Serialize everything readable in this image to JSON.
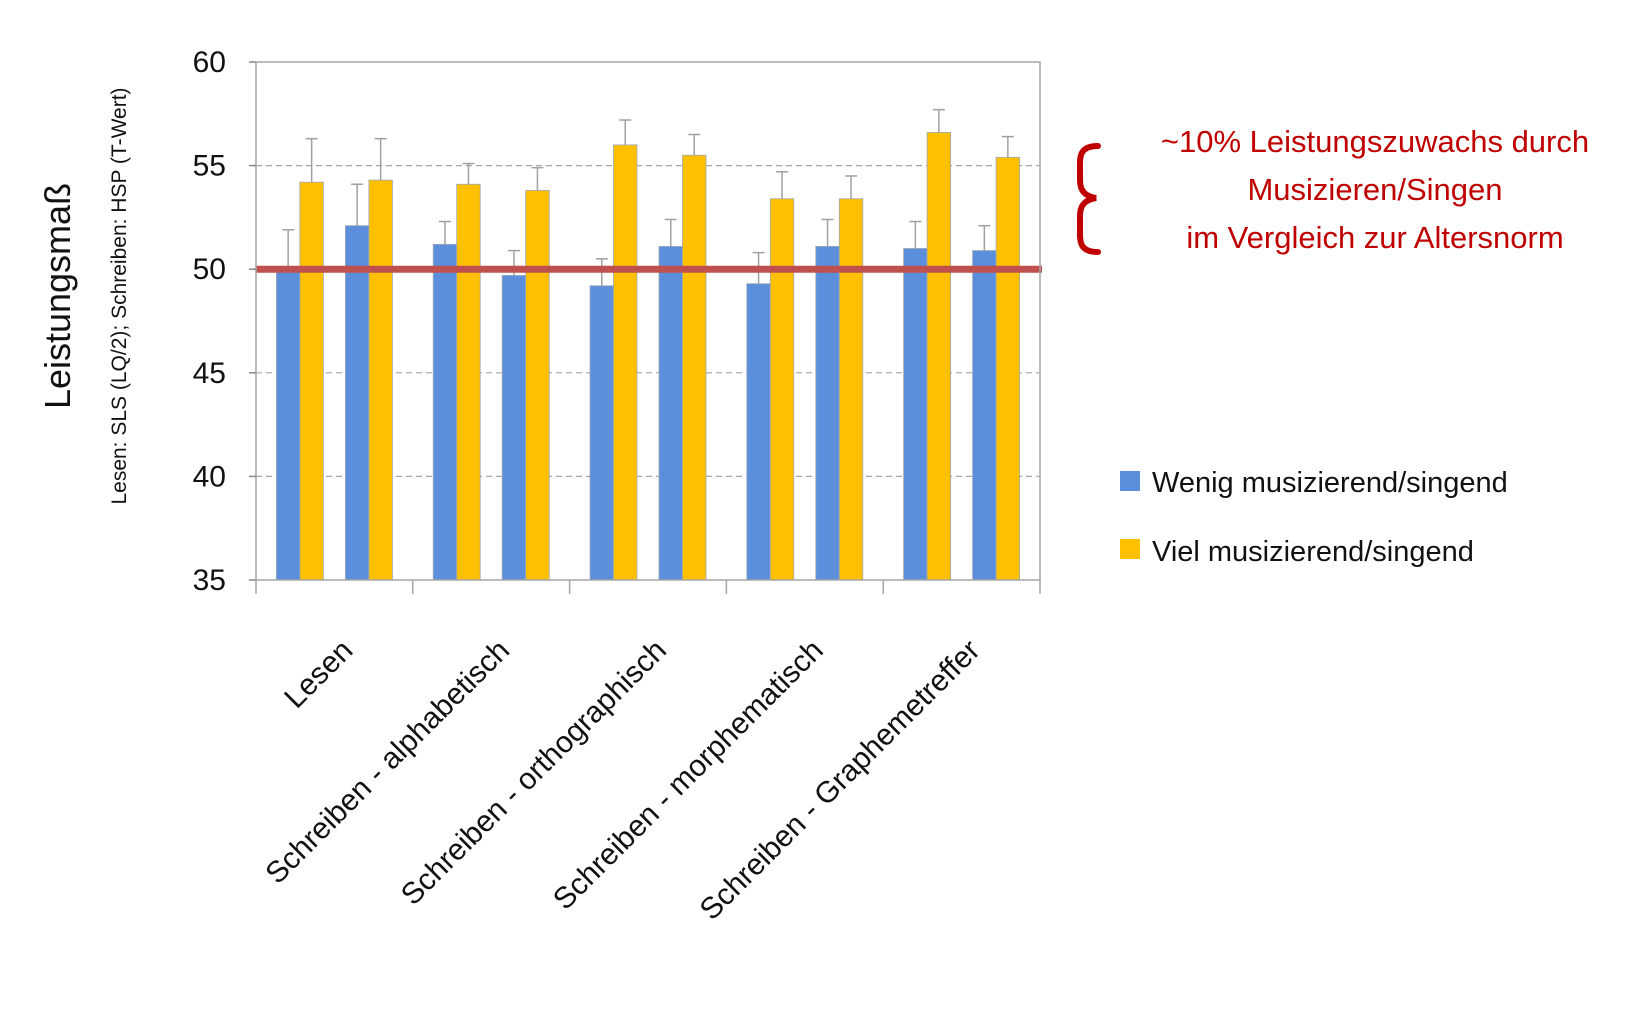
{
  "chart_data": {
    "type": "bar",
    "ylabel": "Leistungsmaß",
    "ylabel_sub": "Lesen:  SLS (LQ/2); Schreiben: HSP (T-Wert)",
    "ylim": [
      35,
      60
    ],
    "yticks": [
      35,
      40,
      45,
      50,
      55,
      60
    ],
    "grid": true,
    "reference_line": {
      "value": 50,
      "color": "#c0504d"
    },
    "categories": [
      "Lesen",
      "Schreiben - alphabetisch",
      "Schreiben - orthographisch",
      "Schreiben - morphematisch",
      "Schreiben - Graphemetreffer"
    ],
    "groups": [
      {
        "category": "Lesen",
        "bars": [
          {
            "series": 0,
            "value": 50.0,
            "error": 1.9
          },
          {
            "series": 1,
            "value": 54.2,
            "error": 2.1
          },
          {
            "series": 0,
            "value": 52.1,
            "error": 2.0
          },
          {
            "series": 1,
            "value": 54.3,
            "error": 2.0
          }
        ]
      },
      {
        "category": "Schreiben - alphabetisch",
        "bars": [
          {
            "series": 0,
            "value": 51.2,
            "error": 1.1
          },
          {
            "series": 1,
            "value": 54.1,
            "error": 1.0
          },
          {
            "series": 0,
            "value": 49.7,
            "error": 1.2
          },
          {
            "series": 1,
            "value": 53.8,
            "error": 1.1
          }
        ]
      },
      {
        "category": "Schreiben - orthographisch",
        "bars": [
          {
            "series": 0,
            "value": 49.2,
            "error": 1.3
          },
          {
            "series": 1,
            "value": 56.0,
            "error": 1.2
          },
          {
            "series": 0,
            "value": 51.1,
            "error": 1.3
          },
          {
            "series": 1,
            "value": 55.5,
            "error": 1.0
          }
        ]
      },
      {
        "category": "Schreiben - morphematisch",
        "bars": [
          {
            "series": 0,
            "value": 49.3,
            "error": 1.5
          },
          {
            "series": 1,
            "value": 53.4,
            "error": 1.3
          },
          {
            "series": 0,
            "value": 51.1,
            "error": 1.3
          },
          {
            "series": 1,
            "value": 53.4,
            "error": 1.1
          }
        ]
      },
      {
        "category": "Schreiben - Graphemetreffer",
        "bars": [
          {
            "series": 0,
            "value": 51.0,
            "error": 1.3
          },
          {
            "series": 1,
            "value": 56.6,
            "error": 1.1
          },
          {
            "series": 0,
            "value": 50.9,
            "error": 1.2
          },
          {
            "series": 1,
            "value": 55.4,
            "error": 1.0
          }
        ]
      }
    ],
    "series": [
      {
        "name": "Wenig musizierend/singend",
        "color": "#5b8fdb"
      },
      {
        "name": "Viel musizierend/singend",
        "color": "#ffc000"
      }
    ],
    "legend_position": "right",
    "annotation": {
      "lines": [
        "~10% Leistungszuwachs durch",
        "Musizieren/Singen",
        "im Vergleich zur Altersnorm"
      ],
      "color": "#c00000"
    }
  }
}
